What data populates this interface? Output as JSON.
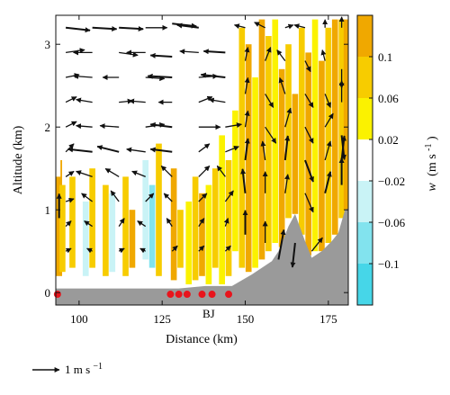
{
  "chart_data": {
    "type": "heatmap",
    "title": "",
    "xlabel": "Distance (km)",
    "ylabel": "Altitude (km)",
    "xlim": [
      93,
      181
    ],
    "ylim": [
      -0.15,
      3.35
    ],
    "x_ticks": [
      "100",
      "125",
      "150",
      "175"
    ],
    "x_tick_values": [
      100,
      125,
      150,
      175
    ],
    "y_ticks": [
      "0",
      "1",
      "2",
      "3"
    ],
    "y_tick_values": [
      0,
      1,
      2,
      3
    ],
    "colorbar": {
      "label_main": "w",
      "label_unit": "(m s",
      "label_exp": "-1",
      "label_close": ")",
      "ticks": [
        "0.1",
        "0.06",
        "0.02",
        "−0.02",
        "−0.06",
        "−0.1"
      ],
      "tick_values": [
        0.1,
        0.06,
        0.02,
        -0.02,
        -0.06,
        -0.1
      ],
      "bins": [
        {
          "from": 0.1,
          "to": 0.14,
          "color": "#f0a800"
        },
        {
          "from": 0.06,
          "to": 0.1,
          "color": "#f7cc00"
        },
        {
          "from": 0.02,
          "to": 0.06,
          "color": "#fbf200"
        },
        {
          "from": -0.02,
          "to": 0.02,
          "color": "#ffffff"
        },
        {
          "from": -0.06,
          "to": -0.02,
          "color": "#c9f3f6"
        },
        {
          "from": -0.1,
          "to": -0.06,
          "color": "#82e3ee"
        },
        {
          "from": -0.14,
          "to": -0.1,
          "color": "#46d6e8"
        }
      ]
    },
    "annotations": [
      {
        "text": "BJ",
        "x": 139,
        "y": -0.18
      }
    ],
    "scale_arrow": {
      "label": "1 m s",
      "exp": "−1"
    },
    "terrain": [
      [
        93,
        0.05
      ],
      [
        124,
        0.05
      ],
      [
        130,
        0.05
      ],
      [
        138,
        0.08
      ],
      [
        146,
        0.08
      ],
      [
        152,
        0.22
      ],
      [
        158,
        0.38
      ],
      [
        160,
        0.5
      ],
      [
        163,
        0.8
      ],
      [
        165,
        0.95
      ],
      [
        168,
        0.62
      ],
      [
        170,
        0.42
      ],
      [
        173,
        0.5
      ],
      [
        176,
        0.62
      ],
      [
        178,
        0.72
      ],
      [
        180,
        1.0
      ],
      [
        181,
        1.02
      ]
    ],
    "observation_points_x": [
      93.5,
      127.5,
      130,
      132.5,
      137,
      140,
      145
    ],
    "w_cells": [
      {
        "x": 94,
        "y0": 0.2,
        "y1": 1.6,
        "w": 0.1
      },
      {
        "x": 95,
        "y0": 0.25,
        "y1": 1.3,
        "w": 0.06
      },
      {
        "x": 93.5,
        "y0": 1.4,
        "y1": 2.4,
        "w": -0.02
      },
      {
        "x": 96,
        "y0": 1.5,
        "y1": 2.8,
        "w": -0.02
      },
      {
        "x": 98,
        "y0": 0.3,
        "y1": 1.4,
        "w": 0.06
      },
      {
        "x": 100,
        "y0": 0.4,
        "y1": 1.8,
        "w": -0.02
      },
      {
        "x": 102,
        "y0": 0.2,
        "y1": 1.1,
        "w": -0.06
      },
      {
        "x": 104,
        "y0": 0.3,
        "y1": 1.5,
        "w": 0.06
      },
      {
        "x": 106,
        "y0": 0.35,
        "y1": 1.0,
        "w": -0.02
      },
      {
        "x": 108,
        "y0": 0.2,
        "y1": 1.3,
        "w": 0.06
      },
      {
        "x": 110,
        "y0": 0.25,
        "y1": 1.2,
        "w": -0.06
      },
      {
        "x": 112,
        "y0": 0.4,
        "y1": 1.7,
        "w": -0.02
      },
      {
        "x": 114,
        "y0": 0.2,
        "y1": 1.4,
        "w": 0.06
      },
      {
        "x": 116,
        "y0": 0.3,
        "y1": 1.0,
        "w": 0.1
      },
      {
        "x": 118,
        "y0": 0.2,
        "y1": 1.9,
        "w": -0.02
      },
      {
        "x": 120,
        "y0": 0.4,
        "y1": 1.6,
        "w": -0.06
      },
      {
        "x": 122,
        "y0": 0.3,
        "y1": 1.3,
        "w": -0.1
      },
      {
        "x": 124,
        "y0": 0.2,
        "y1": 1.8,
        "w": 0.06
      },
      {
        "x": 126,
        "y0": 0.35,
        "y1": 1.2,
        "w": -0.02
      },
      {
        "x": 128.5,
        "y0": 0.15,
        "y1": 1.5,
        "w": 0.1
      },
      {
        "x": 130.5,
        "y0": 0.3,
        "y1": 1.0,
        "w": 0.06
      },
      {
        "x": 133,
        "y0": 0.1,
        "y1": 1.1,
        "w": 0.02
      },
      {
        "x": 135,
        "y0": 0.15,
        "y1": 1.4,
        "w": 0.06
      },
      {
        "x": 137,
        "y0": 0.2,
        "y1": 1.2,
        "w": 0.1
      },
      {
        "x": 139,
        "y0": 0.1,
        "y1": 1.3,
        "w": 0.02
      },
      {
        "x": 141,
        "y0": 0.3,
        "y1": 1.5,
        "w": 0.06
      },
      {
        "x": 143,
        "y0": 0.1,
        "y1": 1.9,
        "w": 0.02
      },
      {
        "x": 145,
        "y0": 0.2,
        "y1": 1.6,
        "w": 0.06
      },
      {
        "x": 147,
        "y0": 0.5,
        "y1": 2.2,
        "w": 0.02
      },
      {
        "x": 149,
        "y0": 0.3,
        "y1": 3.2,
        "w": 0.06
      },
      {
        "x": 151,
        "y0": 0.25,
        "y1": 3.0,
        "w": 0.1
      },
      {
        "x": 153,
        "y0": 0.3,
        "y1": 2.6,
        "w": 0.02
      },
      {
        "x": 155,
        "y0": 0.4,
        "y1": 3.3,
        "w": 0.1
      },
      {
        "x": 157,
        "y0": 0.5,
        "y1": 3.1,
        "w": 0.06
      },
      {
        "x": 159,
        "y0": 0.6,
        "y1": 3.3,
        "w": 0.02
      },
      {
        "x": 161,
        "y0": 0.55,
        "y1": 2.7,
        "w": 0.1
      },
      {
        "x": 163,
        "y0": 0.9,
        "y1": 3.0,
        "w": 0.06
      },
      {
        "x": 165,
        "y0": 0.95,
        "y1": 2.4,
        "w": 0.1
      },
      {
        "x": 167,
        "y0": 0.7,
        "y1": 3.2,
        "w": 0.06
      },
      {
        "x": 169,
        "y0": 0.45,
        "y1": 2.9,
        "w": 0.1
      },
      {
        "x": 171,
        "y0": 0.5,
        "y1": 3.3,
        "w": 0.02
      },
      {
        "x": 173,
        "y0": 0.5,
        "y1": 2.8,
        "w": 0.1
      },
      {
        "x": 175,
        "y0": 0.6,
        "y1": 3.2,
        "w": 0.06
      },
      {
        "x": 177,
        "y0": 0.7,
        "y1": 3.3,
        "w": 0.1
      },
      {
        "x": 179,
        "y0": 0.9,
        "y1": 3.3,
        "w": 0.06
      },
      {
        "x": 180.5,
        "y0": 1.0,
        "y1": 3.3,
        "w": 0.1
      },
      {
        "x": 131,
        "y0": 2.3,
        "y1": 2.9,
        "w": -0.02
      },
      {
        "x": 120,
        "y0": 2.6,
        "y1": 2.9,
        "w": -0.02
      },
      {
        "x": 103,
        "y0": 2.2,
        "y1": 2.6,
        "w": -0.02
      },
      {
        "x": 109,
        "y0": 1.9,
        "y1": 2.2,
        "w": -0.02
      },
      {
        "x": 140,
        "y0": 2.4,
        "y1": 3.2,
        "w": -0.02
      },
      {
        "x": 145,
        "y0": 3.1,
        "y1": 3.3,
        "w": -0.02
      }
    ],
    "wind_vectors": [
      {
        "x": 96,
        "y": 3.2,
        "u": 0.9,
        "v": -0.1
      },
      {
        "x": 104,
        "y": 3.2,
        "u": 0.9,
        "v": -0.05
      },
      {
        "x": 112,
        "y": 3.2,
        "u": 0.9,
        "v": -0.05
      },
      {
        "x": 120,
        "y": 3.2,
        "u": 0.8,
        "v": 0.0
      },
      {
        "x": 128,
        "y": 3.25,
        "u": 0.9,
        "v": -0.1
      },
      {
        "x": 136,
        "y": 3.2,
        "u": -0.8,
        "v": 0.1
      },
      {
        "x": 96,
        "y": 2.9,
        "u": 0.7,
        "v": 0.1
      },
      {
        "x": 104,
        "y": 2.9,
        "u": -0.7,
        "v": 0.0
      },
      {
        "x": 112,
        "y": 2.9,
        "u": 0.7,
        "v": -0.1
      },
      {
        "x": 120,
        "y": 2.9,
        "u": -0.7,
        "v": 0.0
      },
      {
        "x": 128,
        "y": 2.85,
        "u": -0.8,
        "v": 0.05
      },
      {
        "x": 136,
        "y": 2.9,
        "u": -0.7,
        "v": 0.05
      },
      {
        "x": 144,
        "y": 2.9,
        "u": -0.8,
        "v": 0.05
      },
      {
        "x": 96,
        "y": 2.6,
        "u": 0.5,
        "v": 0.1
      },
      {
        "x": 104,
        "y": 2.6,
        "u": -0.7,
        "v": 0.05
      },
      {
        "x": 112,
        "y": 2.6,
        "u": -0.6,
        "v": 0.0
      },
      {
        "x": 120,
        "y": 2.6,
        "u": 0.7,
        "v": -0.05
      },
      {
        "x": 128,
        "y": 2.6,
        "u": -0.9,
        "v": 0.05
      },
      {
        "x": 136,
        "y": 2.6,
        "u": 0.7,
        "v": 0.05
      },
      {
        "x": 144,
        "y": 2.6,
        "u": -0.9,
        "v": 0.1
      },
      {
        "x": 96,
        "y": 2.3,
        "u": 0.4,
        "v": 0.2
      },
      {
        "x": 104,
        "y": 2.3,
        "u": -0.6,
        "v": 0.1
      },
      {
        "x": 112,
        "y": 2.3,
        "u": 0.5,
        "v": 0.05
      },
      {
        "x": 120,
        "y": 2.3,
        "u": -0.6,
        "v": 0.05
      },
      {
        "x": 128,
        "y": 2.3,
        "u": -0.5,
        "v": 0.0
      },
      {
        "x": 136,
        "y": 2.3,
        "u": 0.5,
        "v": 0.2
      },
      {
        "x": 144,
        "y": 2.3,
        "u": -0.6,
        "v": 0.1
      },
      {
        "x": 96,
        "y": 2.0,
        "u": 0.4,
        "v": 0.2
      },
      {
        "x": 104,
        "y": 2.0,
        "u": -0.6,
        "v": 0.05
      },
      {
        "x": 112,
        "y": 2.0,
        "u": -0.7,
        "v": 0.05
      },
      {
        "x": 120,
        "y": 2.0,
        "u": 0.7,
        "v": 0.1
      },
      {
        "x": 128,
        "y": 2.0,
        "u": -0.8,
        "v": 0.1
      },
      {
        "x": 136,
        "y": 2.0,
        "u": 0.8,
        "v": 0.0
      },
      {
        "x": 144,
        "y": 2.0,
        "u": 0.6,
        "v": 0.1
      },
      {
        "x": 96,
        "y": 1.7,
        "u": 0.3,
        "v": 0.3
      },
      {
        "x": 104,
        "y": 1.7,
        "u": -0.9,
        "v": 0.1
      },
      {
        "x": 112,
        "y": 1.7,
        "u": -0.8,
        "v": 0.2
      },
      {
        "x": 120,
        "y": 1.7,
        "u": -0.7,
        "v": 0.1
      },
      {
        "x": 128,
        "y": 1.7,
        "u": -0.8,
        "v": 0.1
      },
      {
        "x": 136,
        "y": 1.7,
        "u": 0.4,
        "v": 0.3
      },
      {
        "x": 144,
        "y": 1.7,
        "u": 0.5,
        "v": 0.2
      },
      {
        "x": 96,
        "y": 1.4,
        "u": 0.3,
        "v": 0.2
      },
      {
        "x": 104,
        "y": 1.4,
        "u": -0.6,
        "v": 0.2
      },
      {
        "x": 112,
        "y": 1.4,
        "u": -0.5,
        "v": 0.3
      },
      {
        "x": 120,
        "y": 1.4,
        "u": -0.5,
        "v": 0.2
      },
      {
        "x": 128,
        "y": 1.4,
        "u": -0.4,
        "v": 0.4
      },
      {
        "x": 136,
        "y": 1.4,
        "u": 0.4,
        "v": 0.4
      },
      {
        "x": 144,
        "y": 1.4,
        "u": -0.3,
        "v": 0.4
      },
      {
        "x": 96,
        "y": 1.1,
        "u": 0.3,
        "v": 0.1
      },
      {
        "x": 104,
        "y": 1.1,
        "u": -0.4,
        "v": 0.3
      },
      {
        "x": 112,
        "y": 1.1,
        "u": -0.3,
        "v": 0.4
      },
      {
        "x": 120,
        "y": 1.1,
        "u": 0.3,
        "v": 0.3
      },
      {
        "x": 128,
        "y": 1.1,
        "u": -0.3,
        "v": 0.3
      },
      {
        "x": 136,
        "y": 1.1,
        "u": 0.3,
        "v": 0.3
      },
      {
        "x": 144,
        "y": 1.1,
        "u": 0.3,
        "v": 0.4
      },
      {
        "x": 96,
        "y": 0.8,
        "u": 0.2,
        "v": 0.2
      },
      {
        "x": 104,
        "y": 0.8,
        "u": -0.3,
        "v": 0.2
      },
      {
        "x": 112,
        "y": 0.8,
        "u": 0.2,
        "v": 0.3
      },
      {
        "x": 120,
        "y": 0.8,
        "u": -0.3,
        "v": 0.2
      },
      {
        "x": 128,
        "y": 0.8,
        "u": -0.2,
        "v": 0.3
      },
      {
        "x": 136,
        "y": 0.8,
        "u": 0.2,
        "v": 0.3
      },
      {
        "x": 144,
        "y": 0.8,
        "u": 0.1,
        "v": 0.3
      },
      {
        "x": 96,
        "y": 0.5,
        "u": 0.2,
        "v": 0.1
      },
      {
        "x": 104,
        "y": 0.5,
        "u": -0.2,
        "v": 0.1
      },
      {
        "x": 112,
        "y": 0.5,
        "u": 0.2,
        "v": 0.1
      },
      {
        "x": 120,
        "y": 0.5,
        "u": -0.2,
        "v": 0.1
      },
      {
        "x": 128,
        "y": 0.5,
        "u": 0.2,
        "v": 0.2
      },
      {
        "x": 136,
        "y": 0.5,
        "u": 0.2,
        "v": 0.2
      },
      {
        "x": 144,
        "y": 0.5,
        "u": 0.2,
        "v": 0.2
      },
      {
        "x": 94,
        "y": 0.9,
        "u": 0.0,
        "v": 0.9
      },
      {
        "x": 150,
        "y": 3.2,
        "u": -0.4,
        "v": 0.1
      },
      {
        "x": 156,
        "y": 3.2,
        "u": -0.4,
        "v": 0.2
      },
      {
        "x": 162,
        "y": 3.2,
        "u": 0.3,
        "v": 0.1
      },
      {
        "x": 168,
        "y": 3.2,
        "u": -0.4,
        "v": 0.1
      },
      {
        "x": 174,
        "y": 3.2,
        "u": 0.0,
        "v": 0.3
      },
      {
        "x": 179,
        "y": 3.2,
        "u": 0.0,
        "v": 0.4
      },
      {
        "x": 150,
        "y": 2.8,
        "u": 0.1,
        "v": 0.5
      },
      {
        "x": 156,
        "y": 2.8,
        "u": 0.2,
        "v": 0.5
      },
      {
        "x": 162,
        "y": 2.8,
        "u": -0.3,
        "v": 0.4
      },
      {
        "x": 168,
        "y": 2.8,
        "u": 0.2,
        "v": -0.4
      },
      {
        "x": 174,
        "y": 2.8,
        "u": -0.1,
        "v": 0.4
      },
      {
        "x": 179,
        "y": 2.7,
        "u": 0.0,
        "v": -0.7
      },
      {
        "x": 150,
        "y": 2.4,
        "u": 0.1,
        "v": 0.6
      },
      {
        "x": 156,
        "y": 2.4,
        "u": 0.3,
        "v": -0.5
      },
      {
        "x": 162,
        "y": 2.4,
        "u": -0.2,
        "v": 0.6
      },
      {
        "x": 168,
        "y": 2.4,
        "u": 0.3,
        "v": -0.5
      },
      {
        "x": 174,
        "y": 2.4,
        "u": 0.2,
        "v": -0.5
      },
      {
        "x": 179,
        "y": 2.3,
        "u": 0.0,
        "v": 0.8
      },
      {
        "x": 150,
        "y": 2.0,
        "u": 0.1,
        "v": 0.6
      },
      {
        "x": 156,
        "y": 2.0,
        "u": 0.4,
        "v": -0.6
      },
      {
        "x": 162,
        "y": 2.0,
        "u": 0.2,
        "v": 0.7
      },
      {
        "x": 168,
        "y": 2.0,
        "u": 0.3,
        "v": -0.6
      },
      {
        "x": 174,
        "y": 2.0,
        "u": 0.3,
        "v": 0.5
      },
      {
        "x": 179,
        "y": 1.9,
        "u": 0.1,
        "v": -0.9
      },
      {
        "x": 150,
        "y": 1.6,
        "u": 0.1,
        "v": 0.8
      },
      {
        "x": 156,
        "y": 1.6,
        "u": -0.1,
        "v": 0.7
      },
      {
        "x": 162,
        "y": 1.6,
        "u": 0.1,
        "v": 0.9
      },
      {
        "x": 168,
        "y": 1.6,
        "u": 0.3,
        "v": -0.8
      },
      {
        "x": 174,
        "y": 1.6,
        "u": 0.2,
        "v": 0.7
      },
      {
        "x": 179,
        "y": 1.6,
        "u": 0.1,
        "v": 0.9
      },
      {
        "x": 150,
        "y": 1.2,
        "u": -0.1,
        "v": 0.9
      },
      {
        "x": 156,
        "y": 1.2,
        "u": 0.0,
        "v": 0.8
      },
      {
        "x": 162,
        "y": 1.2,
        "u": 0.1,
        "v": 0.7
      },
      {
        "x": 168,
        "y": 1.2,
        "u": 0.3,
        "v": -0.7
      },
      {
        "x": 174,
        "y": 1.2,
        "u": 0.2,
        "v": 0.8
      },
      {
        "x": 179,
        "y": 1.3,
        "u": 0.0,
        "v": 1.0
      },
      {
        "x": 150,
        "y": 0.7,
        "u": 0.0,
        "v": 0.9
      },
      {
        "x": 156,
        "y": 0.6,
        "u": 0.0,
        "v": 0.8
      },
      {
        "x": 160,
        "y": 0.4,
        "u": 0.2,
        "v": 1.1
      },
      {
        "x": 165,
        "y": 0.6,
        "u": -0.1,
        "v": -0.9
      },
      {
        "x": 170,
        "y": 0.5,
        "u": 0.4,
        "v": 0.5
      }
    ]
  }
}
